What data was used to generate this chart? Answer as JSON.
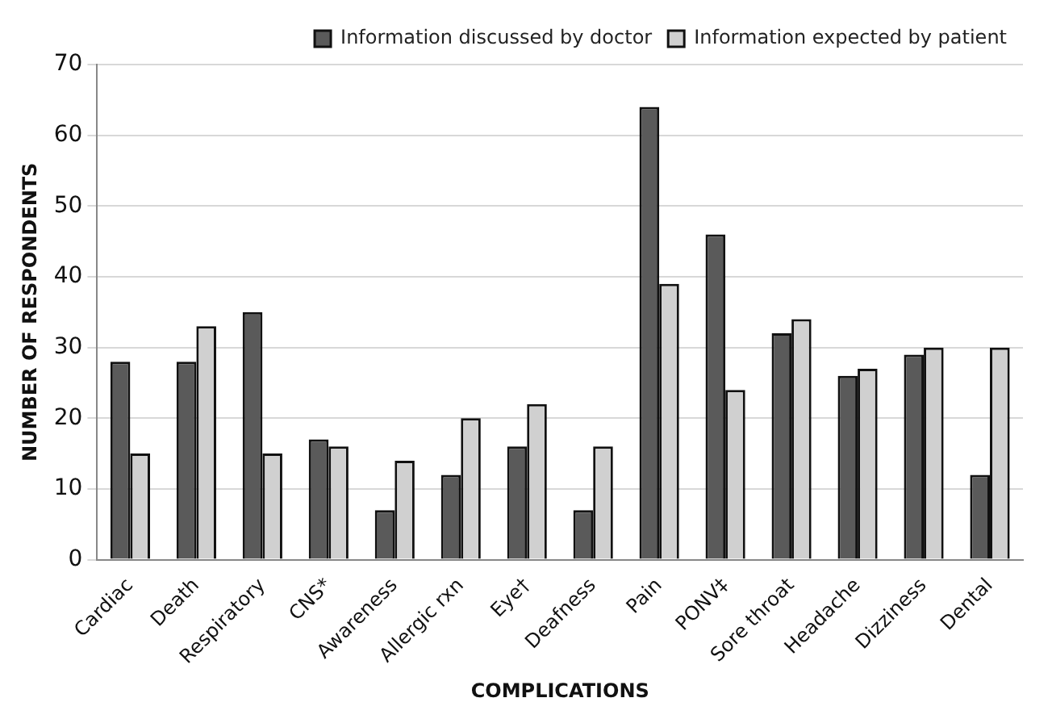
{
  "chart_data": {
    "type": "bar",
    "xlabel": "COMPLICATIONS",
    "ylabel": "NUMBER OF RESPONDENTS",
    "categories": [
      "Cardiac",
      "Death",
      "Respiratory",
      "CNS*",
      "Awareness",
      "Allergic rxn",
      "Eye†",
      "Deafness",
      "Pain",
      "PONV‡",
      "Sore throat",
      "Headache",
      "Dizziness",
      "Dental"
    ],
    "series": [
      {
        "name": "Information discussed by doctor",
        "color": "#5a5a5a",
        "values": [
          28,
          28,
          35,
          17,
          7,
          12,
          16,
          7,
          64,
          46,
          32,
          26,
          29,
          12
        ]
      },
      {
        "name": "Information expected by patient",
        "color": "#d0d0d0",
        "values": [
          15,
          33,
          15,
          16,
          14,
          20,
          22,
          16,
          39,
          24,
          34,
          27,
          30,
          30
        ]
      }
    ],
    "ylim": [
      0,
      70
    ],
    "yticks": [
      0,
      10,
      20,
      30,
      40,
      50,
      60,
      70
    ],
    "grid": "y",
    "legend": "top right"
  }
}
